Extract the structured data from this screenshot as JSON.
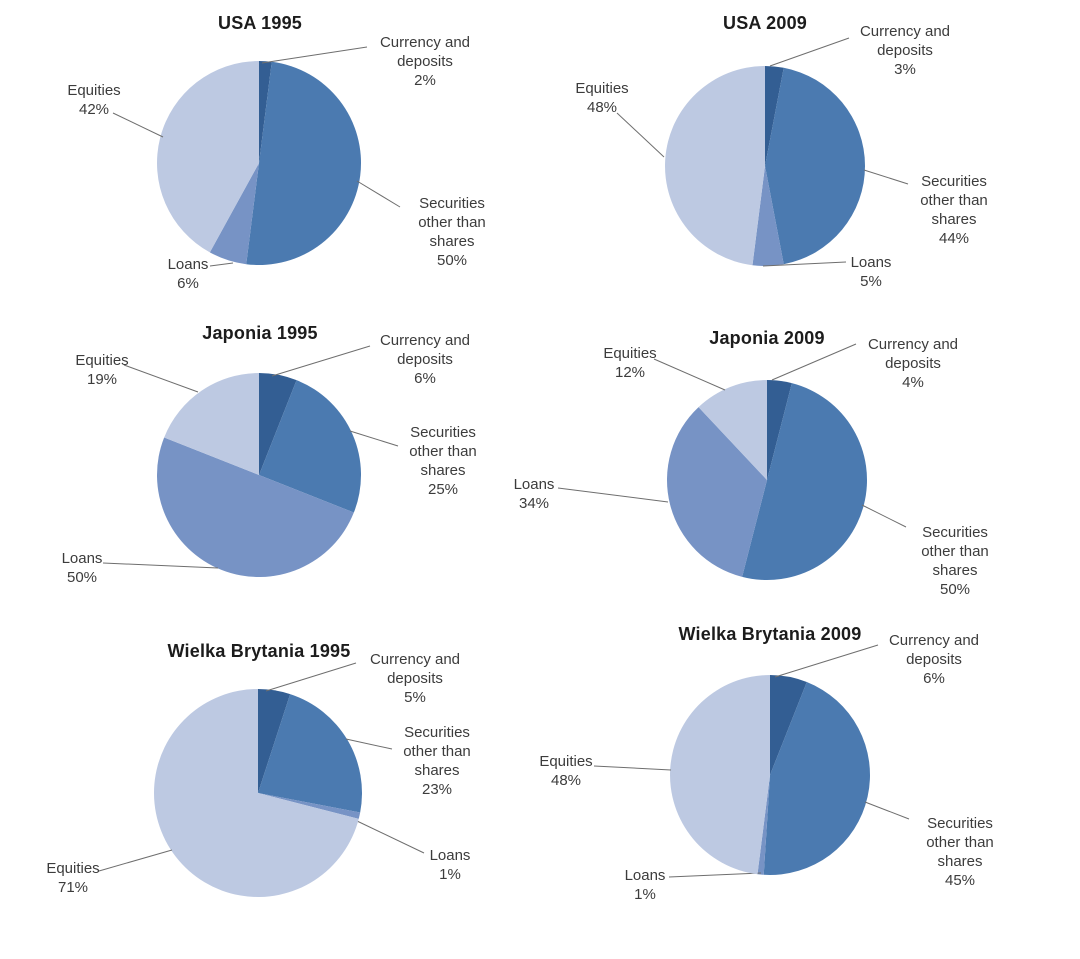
{
  "page": {
    "background": "#ffffff",
    "description": "Grid of six pie charts comparing household financial structure for USA, Japonia and Wielka Brytania in 1995 and 2009"
  },
  "styles": {
    "leader_line_color": "#6e6e6e",
    "label_color": "#3c3c3c",
    "title_color": "#1c1c1c"
  },
  "palette": {
    "Currency and deposits": "#335e93",
    "Securities other than shares": "#4b7ab0",
    "Loans": "#7793c5",
    "Equities": "#bdc9e2"
  },
  "chart_data": [
    {
      "type": "pie",
      "title": "USA 1995",
      "start_angle_deg": 0,
      "direction": "clockwise",
      "slices": [
        {
          "label": "Currency and deposits",
          "value": 2,
          "value_label": "2%"
        },
        {
          "label": "Securities other than shares",
          "value": 50,
          "value_label": "50%"
        },
        {
          "label": "Loans",
          "value": 6,
          "value_label": "6%"
        },
        {
          "label": "Equities",
          "value": 42,
          "value_label": "42%"
        }
      ]
    },
    {
      "type": "pie",
      "title": "USA 2009",
      "start_angle_deg": 0,
      "direction": "clockwise",
      "slices": [
        {
          "label": "Currency and deposits",
          "value": 3,
          "value_label": "3%"
        },
        {
          "label": "Securities other than shares",
          "value": 44,
          "value_label": "44%"
        },
        {
          "label": "Loans",
          "value": 5,
          "value_label": "5%"
        },
        {
          "label": "Equities",
          "value": 48,
          "value_label": "48%"
        }
      ]
    },
    {
      "type": "pie",
      "title": "Japonia 1995",
      "start_angle_deg": 0,
      "direction": "clockwise",
      "slices": [
        {
          "label": "Currency and deposits",
          "value": 6,
          "value_label": "6%"
        },
        {
          "label": "Securities other than shares",
          "value": 25,
          "value_label": "25%"
        },
        {
          "label": "Loans",
          "value": 50,
          "value_label": "50%"
        },
        {
          "label": "Equities",
          "value": 19,
          "value_label": "19%"
        }
      ]
    },
    {
      "type": "pie",
      "title": "Japonia 2009",
      "start_angle_deg": 0,
      "direction": "clockwise",
      "slices": [
        {
          "label": "Currency and deposits",
          "value": 4,
          "value_label": "4%"
        },
        {
          "label": "Securities other than shares",
          "value": 50,
          "value_label": "50%"
        },
        {
          "label": "Loans",
          "value": 34,
          "value_label": "34%"
        },
        {
          "label": "Equities",
          "value": 12,
          "value_label": "12%"
        }
      ]
    },
    {
      "type": "pie",
      "title": "Wielka Brytania 1995",
      "start_angle_deg": 0,
      "direction": "clockwise",
      "slices": [
        {
          "label": "Currency and deposits",
          "value": 5,
          "value_label": "5%"
        },
        {
          "label": "Securities other than shares",
          "value": 23,
          "value_label": "23%"
        },
        {
          "label": "Loans",
          "value": 1,
          "value_label": "1%"
        },
        {
          "label": "Equities",
          "value": 71,
          "value_label": "71%"
        }
      ]
    },
    {
      "type": "pie",
      "title": "Wielka Brytania 2009",
      "start_angle_deg": 0,
      "direction": "clockwise",
      "slices": [
        {
          "label": "Currency and deposits",
          "value": 6,
          "value_label": "6%"
        },
        {
          "label": "Securities other than shares",
          "value": 45,
          "value_label": "45%"
        },
        {
          "label": "Loans",
          "value": 1,
          "value_label": "1%"
        },
        {
          "label": "Equities",
          "value": 48,
          "value_label": "48%"
        }
      ]
    }
  ]
}
